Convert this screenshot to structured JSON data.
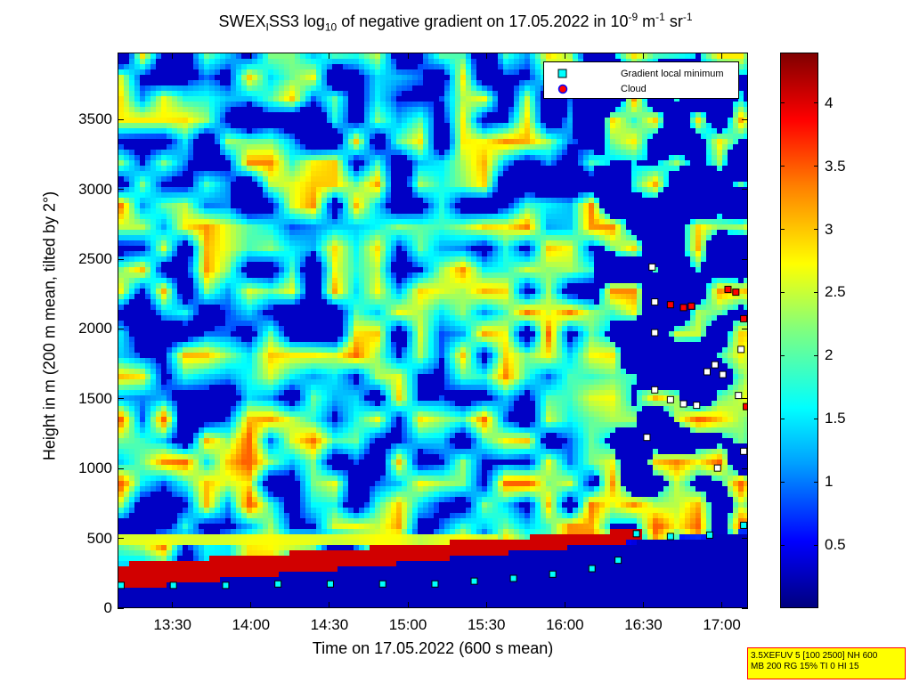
{
  "title": {
    "prefix": "SWEX",
    "sub1": "I",
    "mid": "SS3 log",
    "sub2": "10",
    "rest": " of negative gradient on 17.05.2022 in 10",
    "sup1": "-9",
    "unit1": " m",
    "sup2": "-1",
    "unit2": " sr",
    "sup3": "-1"
  },
  "chart_data": {
    "type": "heatmap",
    "xlabel": "Time on 17.05.2022 (600 s mean)",
    "ylabel": "Height in m (200 m mean, tilted by 2°)",
    "x_ticks": [
      "13:30",
      "14:00",
      "14:30",
      "15:00",
      "15:30",
      "16:00",
      "16:30",
      "17:00"
    ],
    "y_ticks": [
      0,
      500,
      1000,
      1500,
      2000,
      2500,
      3000,
      3500
    ],
    "ylim": [
      0,
      3980
    ],
    "xlim": [
      "13:09",
      "17:10"
    ],
    "colorbar_ticks": [
      "0.5",
      "1",
      "1.5",
      "2",
      "2.5",
      "3",
      "3.5",
      "4"
    ],
    "colorbar_range": [
      0,
      4.4
    ],
    "colormap": "jet",
    "legend": [
      {
        "label": "Gradient local minimum",
        "marker": "cyan-square"
      },
      {
        "label": "Cloud",
        "marker": "red-circle"
      }
    ],
    "legend_position": "top-right",
    "series": [
      {
        "name": "Gradient local minimum",
        "points": [
          {
            "t": "13:10",
            "h": 170
          },
          {
            "t": "13:30",
            "h": 170
          },
          {
            "t": "13:50",
            "h": 170
          },
          {
            "t": "14:10",
            "h": 180
          },
          {
            "t": "14:30",
            "h": 180
          },
          {
            "t": "14:50",
            "h": 180
          },
          {
            "t": "15:10",
            "h": 180
          },
          {
            "t": "15:25",
            "h": 200
          },
          {
            "t": "15:40",
            "h": 220
          },
          {
            "t": "15:55",
            "h": 250
          },
          {
            "t": "16:10",
            "h": 290
          },
          {
            "t": "16:20",
            "h": 350
          },
          {
            "t": "16:27",
            "h": 540
          },
          {
            "t": "16:40",
            "h": 520
          },
          {
            "t": "16:55",
            "h": 530
          },
          {
            "t": "17:08",
            "h": 600
          }
        ]
      },
      {
        "name": "Cloud",
        "points": [
          {
            "t": "16:40",
            "h": 2180
          },
          {
            "t": "16:45",
            "h": 2160
          },
          {
            "t": "16:48",
            "h": 2170
          },
          {
            "t": "17:02",
            "h": 2290
          },
          {
            "t": "17:05",
            "h": 2270
          },
          {
            "t": "17:08",
            "h": 2080
          },
          {
            "t": "17:09",
            "h": 1450
          }
        ]
      },
      {
        "name": "",
        "points": [
          {
            "t": "16:33",
            "h": 2450
          },
          {
            "t": "16:34",
            "h": 2200
          },
          {
            "t": "16:34",
            "h": 1980
          },
          {
            "t": "16:34",
            "h": 1570
          },
          {
            "t": "16:31",
            "h": 1230
          },
          {
            "t": "16:40",
            "h": 1500
          },
          {
            "t": "16:45",
            "h": 1470
          },
          {
            "t": "16:50",
            "h": 1460
          },
          {
            "t": "16:54",
            "h": 1700
          },
          {
            "t": "16:57",
            "h": 1750
          },
          {
            "t": "17:00",
            "h": 1680
          },
          {
            "t": "17:06",
            "h": 1530
          },
          {
            "t": "17:08",
            "h": 1130
          },
          {
            "t": "16:58",
            "h": 1010
          },
          {
            "t": "17:07",
            "h": 1860
          }
        ]
      }
    ]
  },
  "infobox": {
    "line1": "3.5XEFUV 5 [100 2500] NH 600",
    "line2": "MB 200 RG 15% TI 0 HI 15"
  },
  "colors": {
    "low": "#00008f",
    "mid": "#7fff7f",
    "high": "#800000",
    "cloud_marker": "#ff0000",
    "minimum_marker": "#00ffff"
  }
}
